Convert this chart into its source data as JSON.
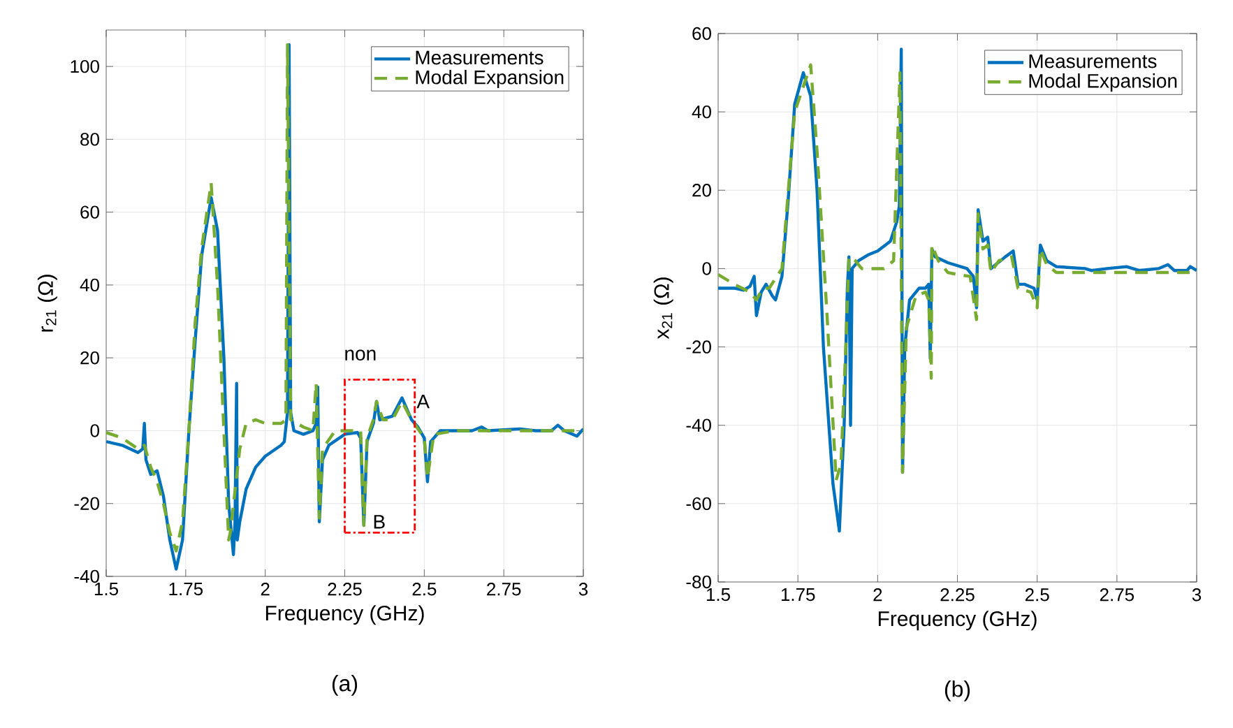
{
  "chart_data": [
    {
      "type": "line",
      "title": "(a)",
      "xlabel": "Frequency (GHz)",
      "ylabel": "r$_{21}$  (Ω)",
      "xlim": [
        1.5,
        3
      ],
      "ylim": [
        -40,
        110
      ],
      "xticks": [
        1.5,
        1.75,
        2,
        2.25,
        2.5,
        2.75,
        3
      ],
      "yticks": [
        -40,
        -20,
        0,
        20,
        40,
        60,
        80,
        100
      ],
      "grid": true,
      "legend": "top right",
      "series": [
        {
          "name": "Measurements",
          "color": "#0072bd",
          "line_style": "solid",
          "x": [
            1.5,
            1.55,
            1.6,
            1.615,
            1.62,
            1.625,
            1.64,
            1.66,
            1.68,
            1.7,
            1.72,
            1.74,
            1.76,
            1.78,
            1.8,
            1.83,
            1.85,
            1.87,
            1.885,
            1.9,
            1.905,
            1.91,
            1.912,
            1.92,
            1.94,
            1.97,
            2.0,
            2.05,
            2.06,
            2.07,
            2.075,
            2.08,
            2.09,
            2.12,
            2.15,
            2.16,
            2.165,
            2.17,
            2.18,
            2.2,
            2.25,
            2.29,
            2.3,
            2.31,
            2.32,
            2.34,
            2.35,
            2.36,
            2.4,
            2.43,
            2.46,
            2.48,
            2.5,
            2.51,
            2.52,
            2.55,
            2.65,
            2.68,
            2.7,
            2.8,
            2.85,
            2.9,
            2.92,
            2.94,
            2.98,
            3.0
          ],
          "values": [
            -3,
            -4,
            -6,
            -5,
            2,
            -8,
            -12,
            -11,
            -18,
            -30,
            -38,
            -30,
            0,
            25,
            48,
            64,
            55,
            20,
            -20,
            -34,
            -25,
            13,
            -30,
            -25,
            -16,
            -10,
            -7,
            -4,
            -3,
            5,
            106,
            5,
            0,
            -1,
            0,
            2,
            12,
            -25,
            -8,
            -4,
            -1,
            -0.5,
            -2,
            -26,
            -3,
            2,
            8,
            3,
            4,
            9,
            3,
            1,
            -2,
            -14,
            -3,
            0,
            0,
            1,
            0,
            0.5,
            0,
            0,
            1.5,
            0,
            -1.5,
            0.5
          ]
        },
        {
          "name": "Modal Expansion",
          "color": "#77ac30",
          "line_style": "dashed",
          "x": [
            1.5,
            1.55,
            1.6,
            1.62,
            1.64,
            1.66,
            1.68,
            1.7,
            1.72,
            1.74,
            1.76,
            1.78,
            1.8,
            1.83,
            1.85,
            1.87,
            1.885,
            1.89,
            1.92,
            1.94,
            1.97,
            2.0,
            2.05,
            2.065,
            2.07,
            2.08,
            2.12,
            2.15,
            2.16,
            2.17,
            2.18,
            2.22,
            2.3,
            2.31,
            2.32,
            2.34,
            2.35,
            2.37,
            2.4,
            2.43,
            2.46,
            2.5,
            2.51,
            2.53,
            2.6,
            3.0
          ],
          "values": [
            -0.5,
            -2,
            -5,
            -4,
            -10,
            -14,
            -20,
            -28,
            -33,
            -25,
            0,
            30,
            50,
            68,
            40,
            0,
            -30,
            -28,
            -5,
            2,
            3,
            2,
            2,
            3,
            106,
            3,
            1,
            0,
            13,
            -24,
            -5,
            0,
            0,
            -26,
            -2,
            3,
            8,
            3,
            3,
            8,
            3,
            -2,
            -13,
            -1,
            0,
            0
          ]
        }
      ],
      "annotations": [
        "non",
        "A",
        "B"
      ]
    },
    {
      "type": "line",
      "title": "(b)",
      "xlabel": "Frequency (GHz)",
      "ylabel": "x$_{21}$  (Ω)",
      "xlim": [
        1.5,
        3
      ],
      "ylim": [
        -80,
        60
      ],
      "xticks": [
        1.5,
        1.75,
        2,
        2.25,
        2.5,
        2.75,
        3
      ],
      "yticks": [
        -80,
        -60,
        -40,
        -20,
        0,
        20,
        40,
        60
      ],
      "grid": true,
      "legend": "top right",
      "series": [
        {
          "name": "Measurements",
          "color": "#0072bd",
          "line_style": "solid",
          "x": [
            1.5,
            1.55,
            1.58,
            1.6,
            1.613,
            1.62,
            1.635,
            1.65,
            1.67,
            1.68,
            1.7,
            1.72,
            1.74,
            1.767,
            1.79,
            1.81,
            1.83,
            1.86,
            1.88,
            1.895,
            1.905,
            1.91,
            1.915,
            1.92,
            1.94,
            1.97,
            2.0,
            2.04,
            2.06,
            2.068,
            2.074,
            2.078,
            2.085,
            2.1,
            2.13,
            2.15,
            2.16,
            2.165,
            2.17,
            2.18,
            2.22,
            2.28,
            2.3,
            2.31,
            2.315,
            2.33,
            2.345,
            2.355,
            2.37,
            2.4,
            2.425,
            2.44,
            2.46,
            2.49,
            2.5,
            2.51,
            2.53,
            2.56,
            2.65,
            2.67,
            2.72,
            2.78,
            2.82,
            2.88,
            2.91,
            2.93,
            2.97,
            2.98,
            3.0
          ],
          "values": [
            -5,
            -5,
            -5.5,
            -4.5,
            -2,
            -12,
            -6,
            -4,
            -7,
            -8,
            -2,
            18,
            42,
            50,
            44,
            20,
            -20,
            -55,
            -67,
            -40,
            -5,
            3,
            -40,
            0,
            2,
            3.5,
            4.5,
            7,
            12,
            16,
            56,
            -52,
            -20,
            -8,
            -5,
            -5,
            -4,
            -23,
            5,
            3,
            1.5,
            0,
            -2,
            -10,
            15,
            7,
            8,
            0,
            1,
            3,
            4.5,
            -4,
            -4,
            -5,
            -8,
            6,
            2,
            0.5,
            0,
            -0.5,
            0,
            0.5,
            -0.5,
            0,
            1,
            -0.5,
            -0.5,
            0.5,
            -0.5
          ]
        },
        {
          "name": "Modal Expansion",
          "color": "#77ac30",
          "line_style": "dashed",
          "x": [
            1.5,
            1.55,
            1.6,
            1.62,
            1.64,
            1.66,
            1.7,
            1.72,
            1.74,
            1.79,
            1.81,
            1.84,
            1.87,
            1.885,
            1.9,
            1.91,
            1.93,
            1.95,
            1.98,
            2.02,
            2.05,
            2.07,
            2.078,
            2.09,
            2.12,
            2.15,
            2.16,
            2.168,
            2.17,
            2.19,
            2.22,
            2.25,
            2.29,
            2.31,
            2.315,
            2.33,
            2.345,
            2.355,
            2.38,
            2.42,
            2.44,
            2.48,
            2.5,
            2.51,
            2.53,
            2.56,
            3.0
          ],
          "values": [
            -1.5,
            -4,
            -6,
            -8,
            -5,
            -5,
            0,
            20,
            40,
            52,
            30,
            -10,
            -54,
            -50,
            -20,
            3,
            2,
            0,
            0,
            0,
            2,
            50,
            -52,
            -15,
            -7,
            -6,
            -8,
            -28,
            6,
            2,
            -1,
            -1.5,
            -2,
            -13,
            14,
            5,
            6,
            -1,
            2,
            3,
            -5,
            -6,
            -10,
            5,
            1,
            -1,
            -1
          ]
        }
      ]
    }
  ]
}
